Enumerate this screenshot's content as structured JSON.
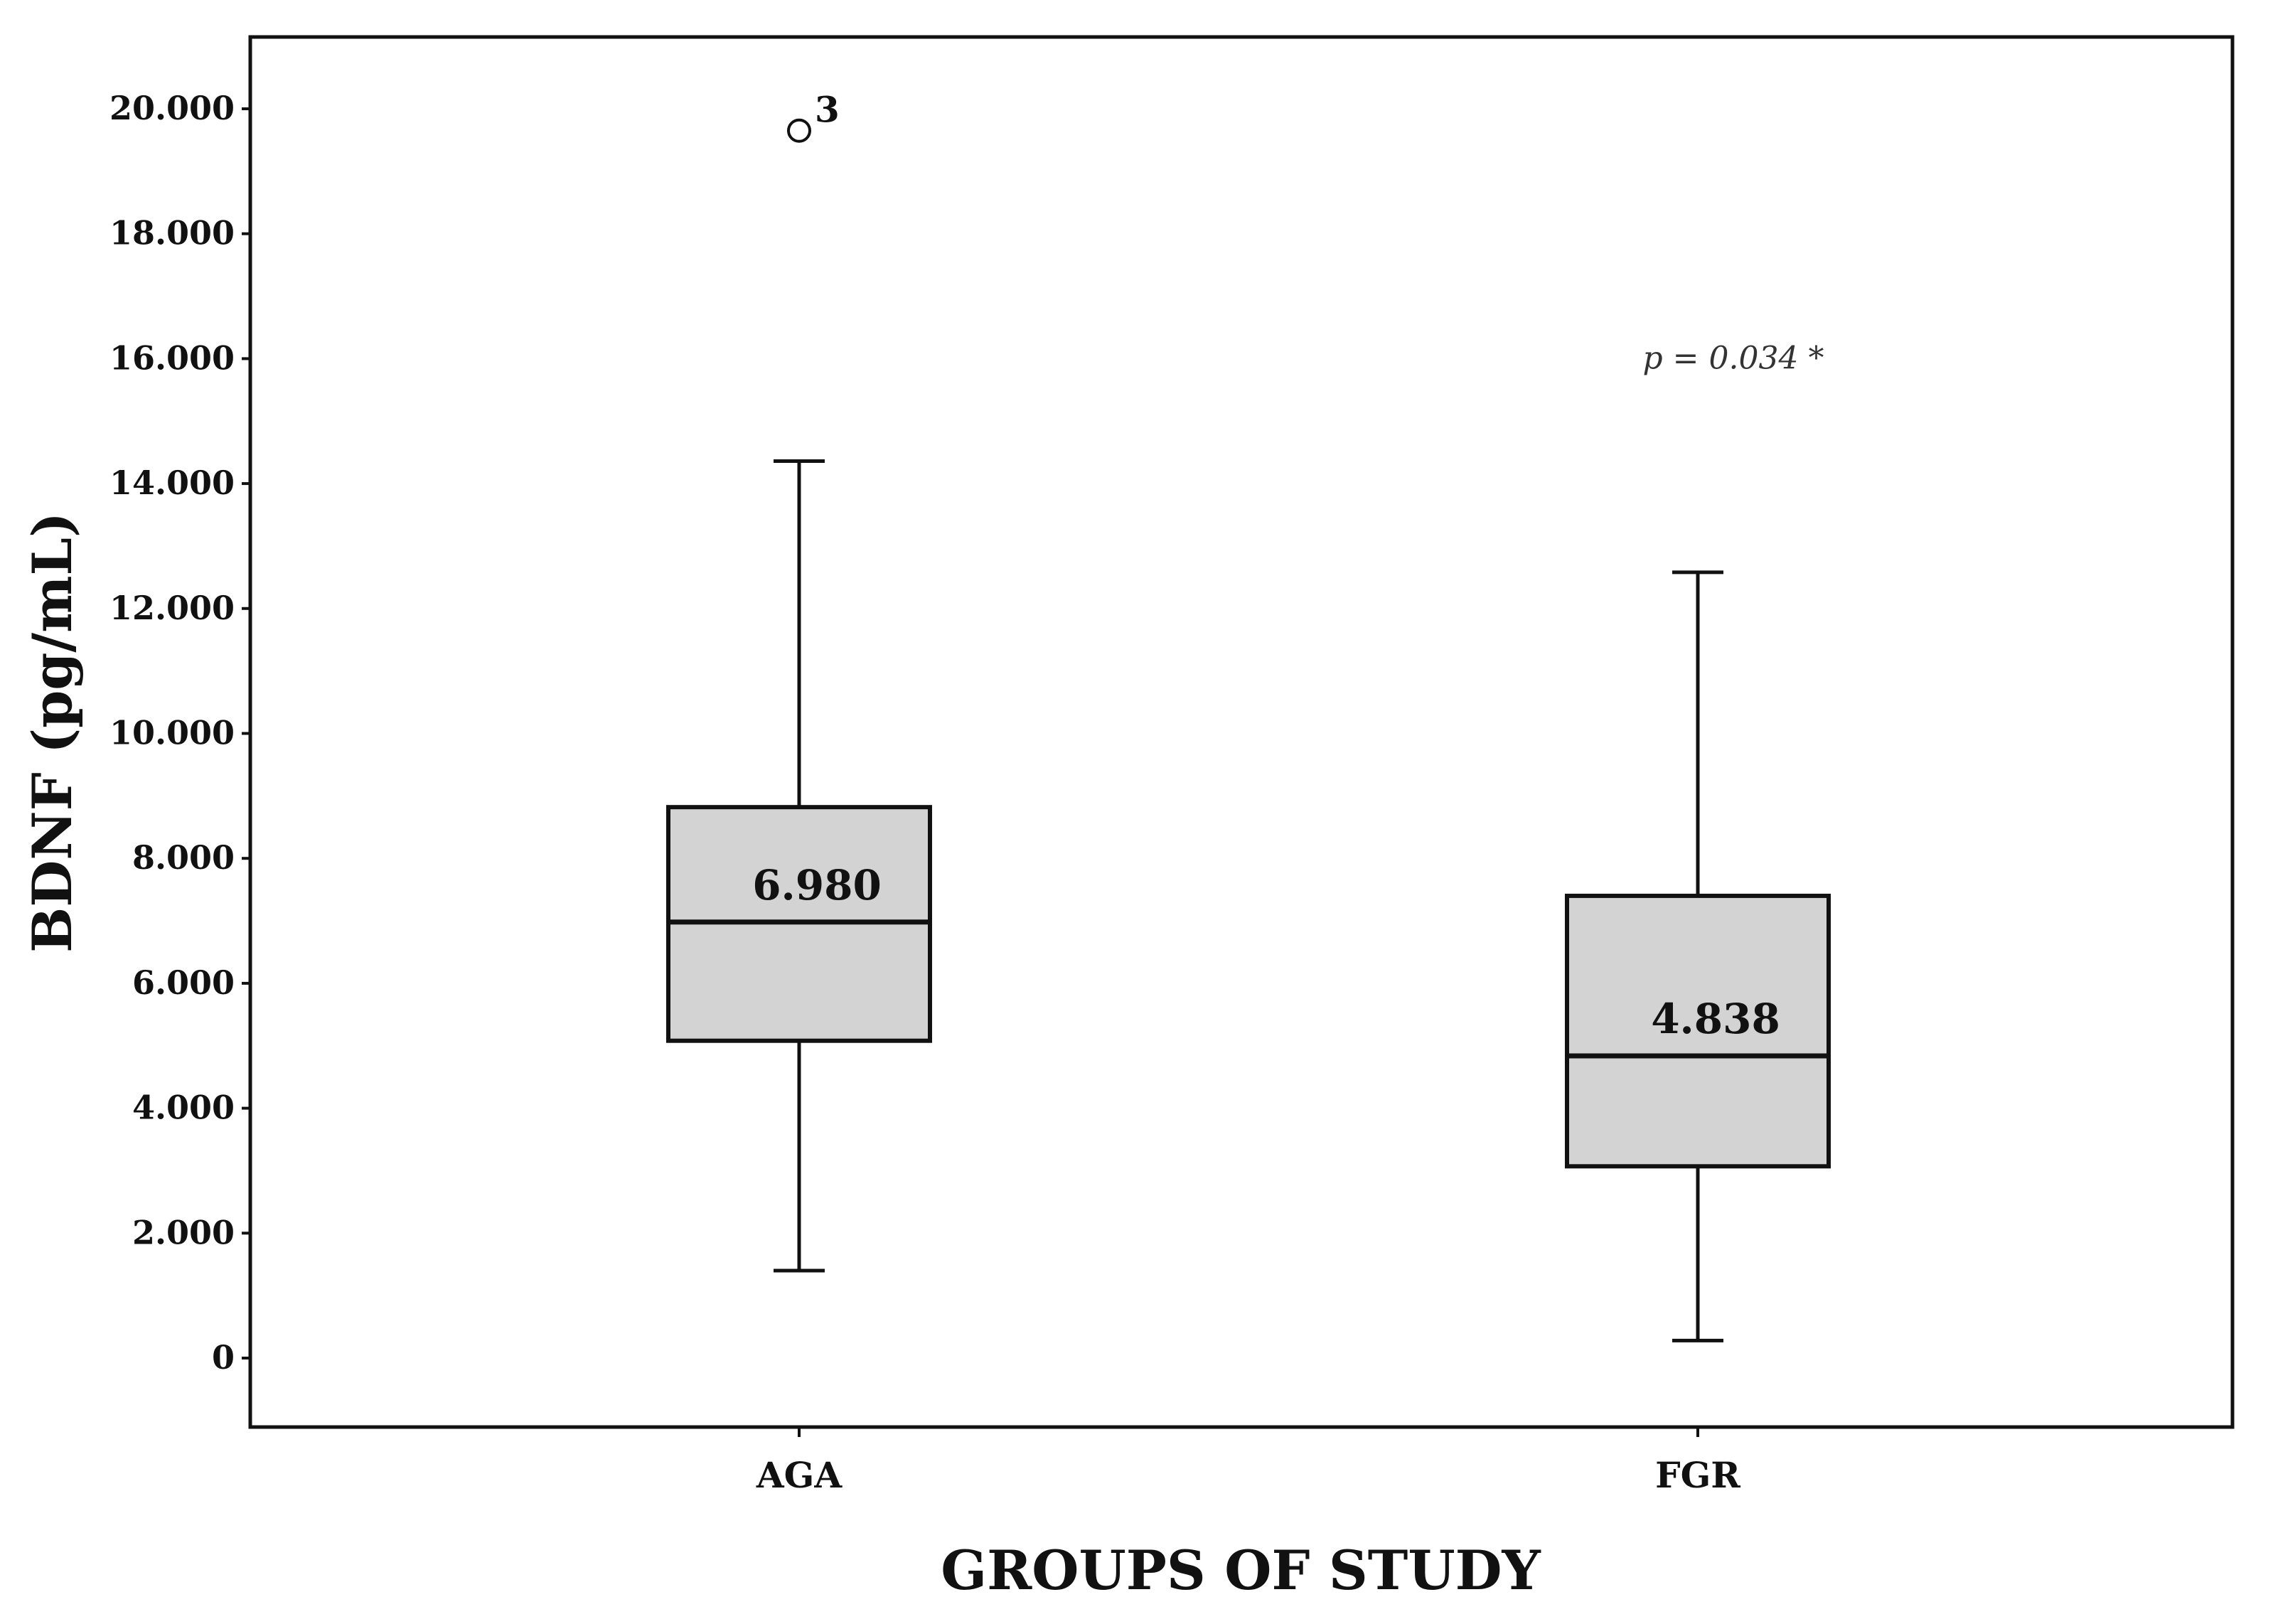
{
  "chart_data": {
    "type": "boxplot",
    "title": "",
    "xlabel": "GROUPS OF STUDY",
    "ylabel": "BDNF (pg/mL)",
    "ylim": [
      -1100,
      21100
    ],
    "yticks": [
      0,
      2000,
      4000,
      6000,
      8000,
      10000,
      12000,
      14000,
      16000,
      18000,
      20000
    ],
    "ytick_labels": [
      "0",
      "2.000",
      "4.000",
      "6.000",
      "8.000",
      "10.000",
      "12.000",
      "14.000",
      "16.000",
      "18.000",
      "20.000"
    ],
    "grid": false,
    "categories": [
      "AGA",
      "FGR"
    ],
    "boxes": [
      {
        "category": "AGA",
        "whisker_low": 1400,
        "q1": 5080,
        "median": 6980,
        "q3": 8820,
        "whisker_high": 14360,
        "median_label": "6.980",
        "outliers": [
          {
            "value": 19650,
            "label": "3"
          }
        ]
      },
      {
        "category": "FGR",
        "whisker_low": 280,
        "q1": 3070,
        "median": 4838,
        "q3": 7400,
        "whisker_high": 12580,
        "median_label": "4.838",
        "outliers": []
      }
    ],
    "annotations": [
      {
        "text": "p = 0.034 *",
        "near_category": "FGR",
        "y": 16000
      }
    ],
    "colors": {
      "box_fill": "#d3d3d3",
      "line": "#111111",
      "background": "#ffffff"
    }
  }
}
